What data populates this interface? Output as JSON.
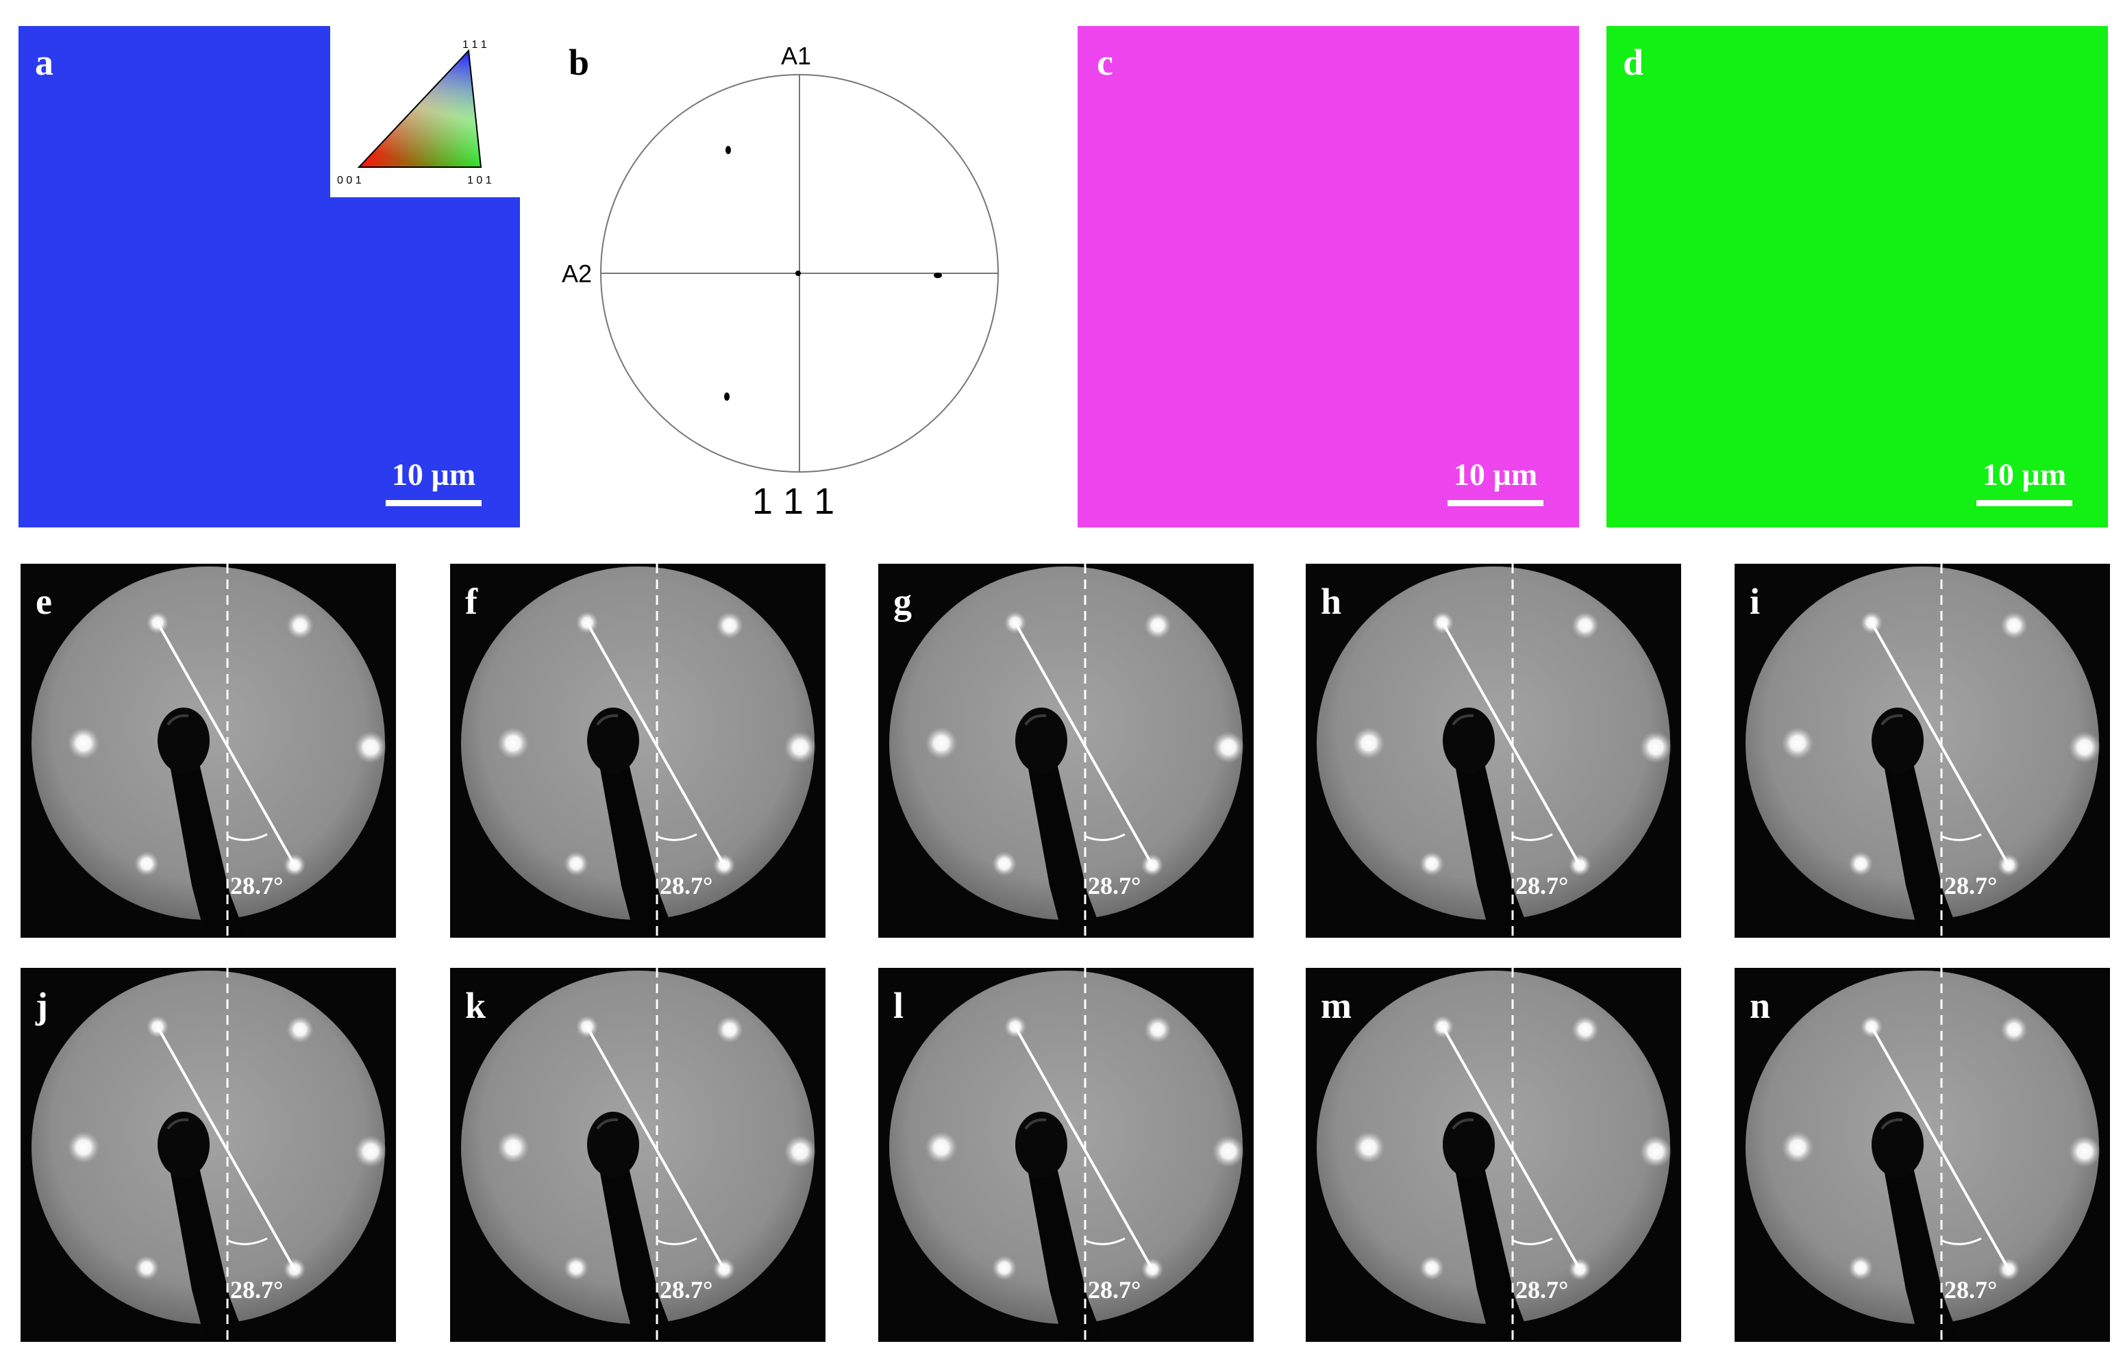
{
  "figure": {
    "ebsd_panels": [
      {
        "id": "a",
        "label": "a",
        "color": "#2b3cf0",
        "scale_bar": "10 µm"
      },
      {
        "id": "c",
        "label": "c",
        "color": "#ee44ee",
        "scale_bar": "10 µm"
      },
      {
        "id": "d",
        "label": "d",
        "color": "#13f013",
        "scale_bar": "10 µm"
      }
    ],
    "ipf_legend": {
      "corners": {
        "top": "1 1 1",
        "left": "0 0 1",
        "right": "1 0 1"
      }
    },
    "pole_figure": {
      "label": "b",
      "axis_top": "A1",
      "axis_left": "A2",
      "plane": "1 1 1"
    },
    "leed_panels": [
      {
        "label": "e",
        "angle": "28.7°"
      },
      {
        "label": "f",
        "angle": "28.7°"
      },
      {
        "label": "g",
        "angle": "28.7°"
      },
      {
        "label": "h",
        "angle": "28.7°"
      },
      {
        "label": "i",
        "angle": "28.7°"
      },
      {
        "label": "j",
        "angle": "28.7°"
      },
      {
        "label": "k",
        "angle": "28.7°"
      },
      {
        "label": "l",
        "angle": "28.7°"
      },
      {
        "label": "m",
        "angle": "28.7°"
      },
      {
        "label": "n",
        "angle": "28.7°"
      }
    ]
  }
}
